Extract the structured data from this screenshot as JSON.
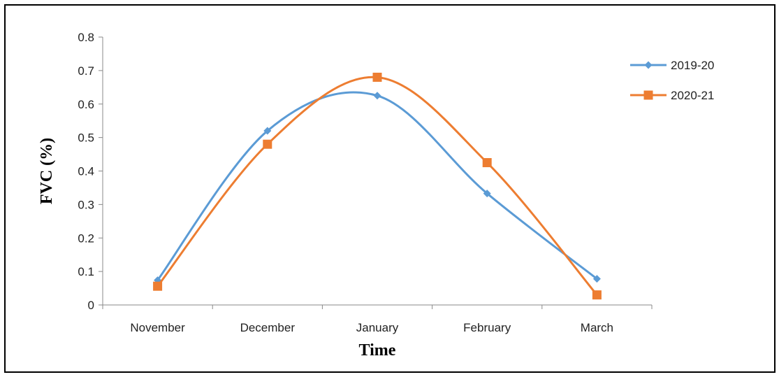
{
  "chart_data": {
    "type": "line",
    "title": "",
    "xlabel": "Time",
    "ylabel": "FVC (%)",
    "categories": [
      "November",
      "December",
      "January",
      "February",
      "March"
    ],
    "ylim": [
      0,
      0.8
    ],
    "yticks": [
      0,
      0.1,
      0.2,
      0.3,
      0.4,
      0.5,
      0.6,
      0.7,
      0.8
    ],
    "ytick_labels": [
      "0",
      "0.1",
      "0.2",
      "0.3",
      "0.4",
      "0.5",
      "0.6",
      "0.7",
      "0.8"
    ],
    "smooth": true,
    "grid": false,
    "legend_position": "right",
    "series": [
      {
        "name": "2019-20",
        "values": [
          0.074,
          0.52,
          0.625,
          0.333,
          0.078
        ],
        "color": "#5B9BD5",
        "marker": "diamond"
      },
      {
        "name": "2020-21",
        "values": [
          0.056,
          0.48,
          0.68,
          0.425,
          0.03
        ],
        "color": "#ED7D31",
        "marker": "square"
      }
    ]
  }
}
